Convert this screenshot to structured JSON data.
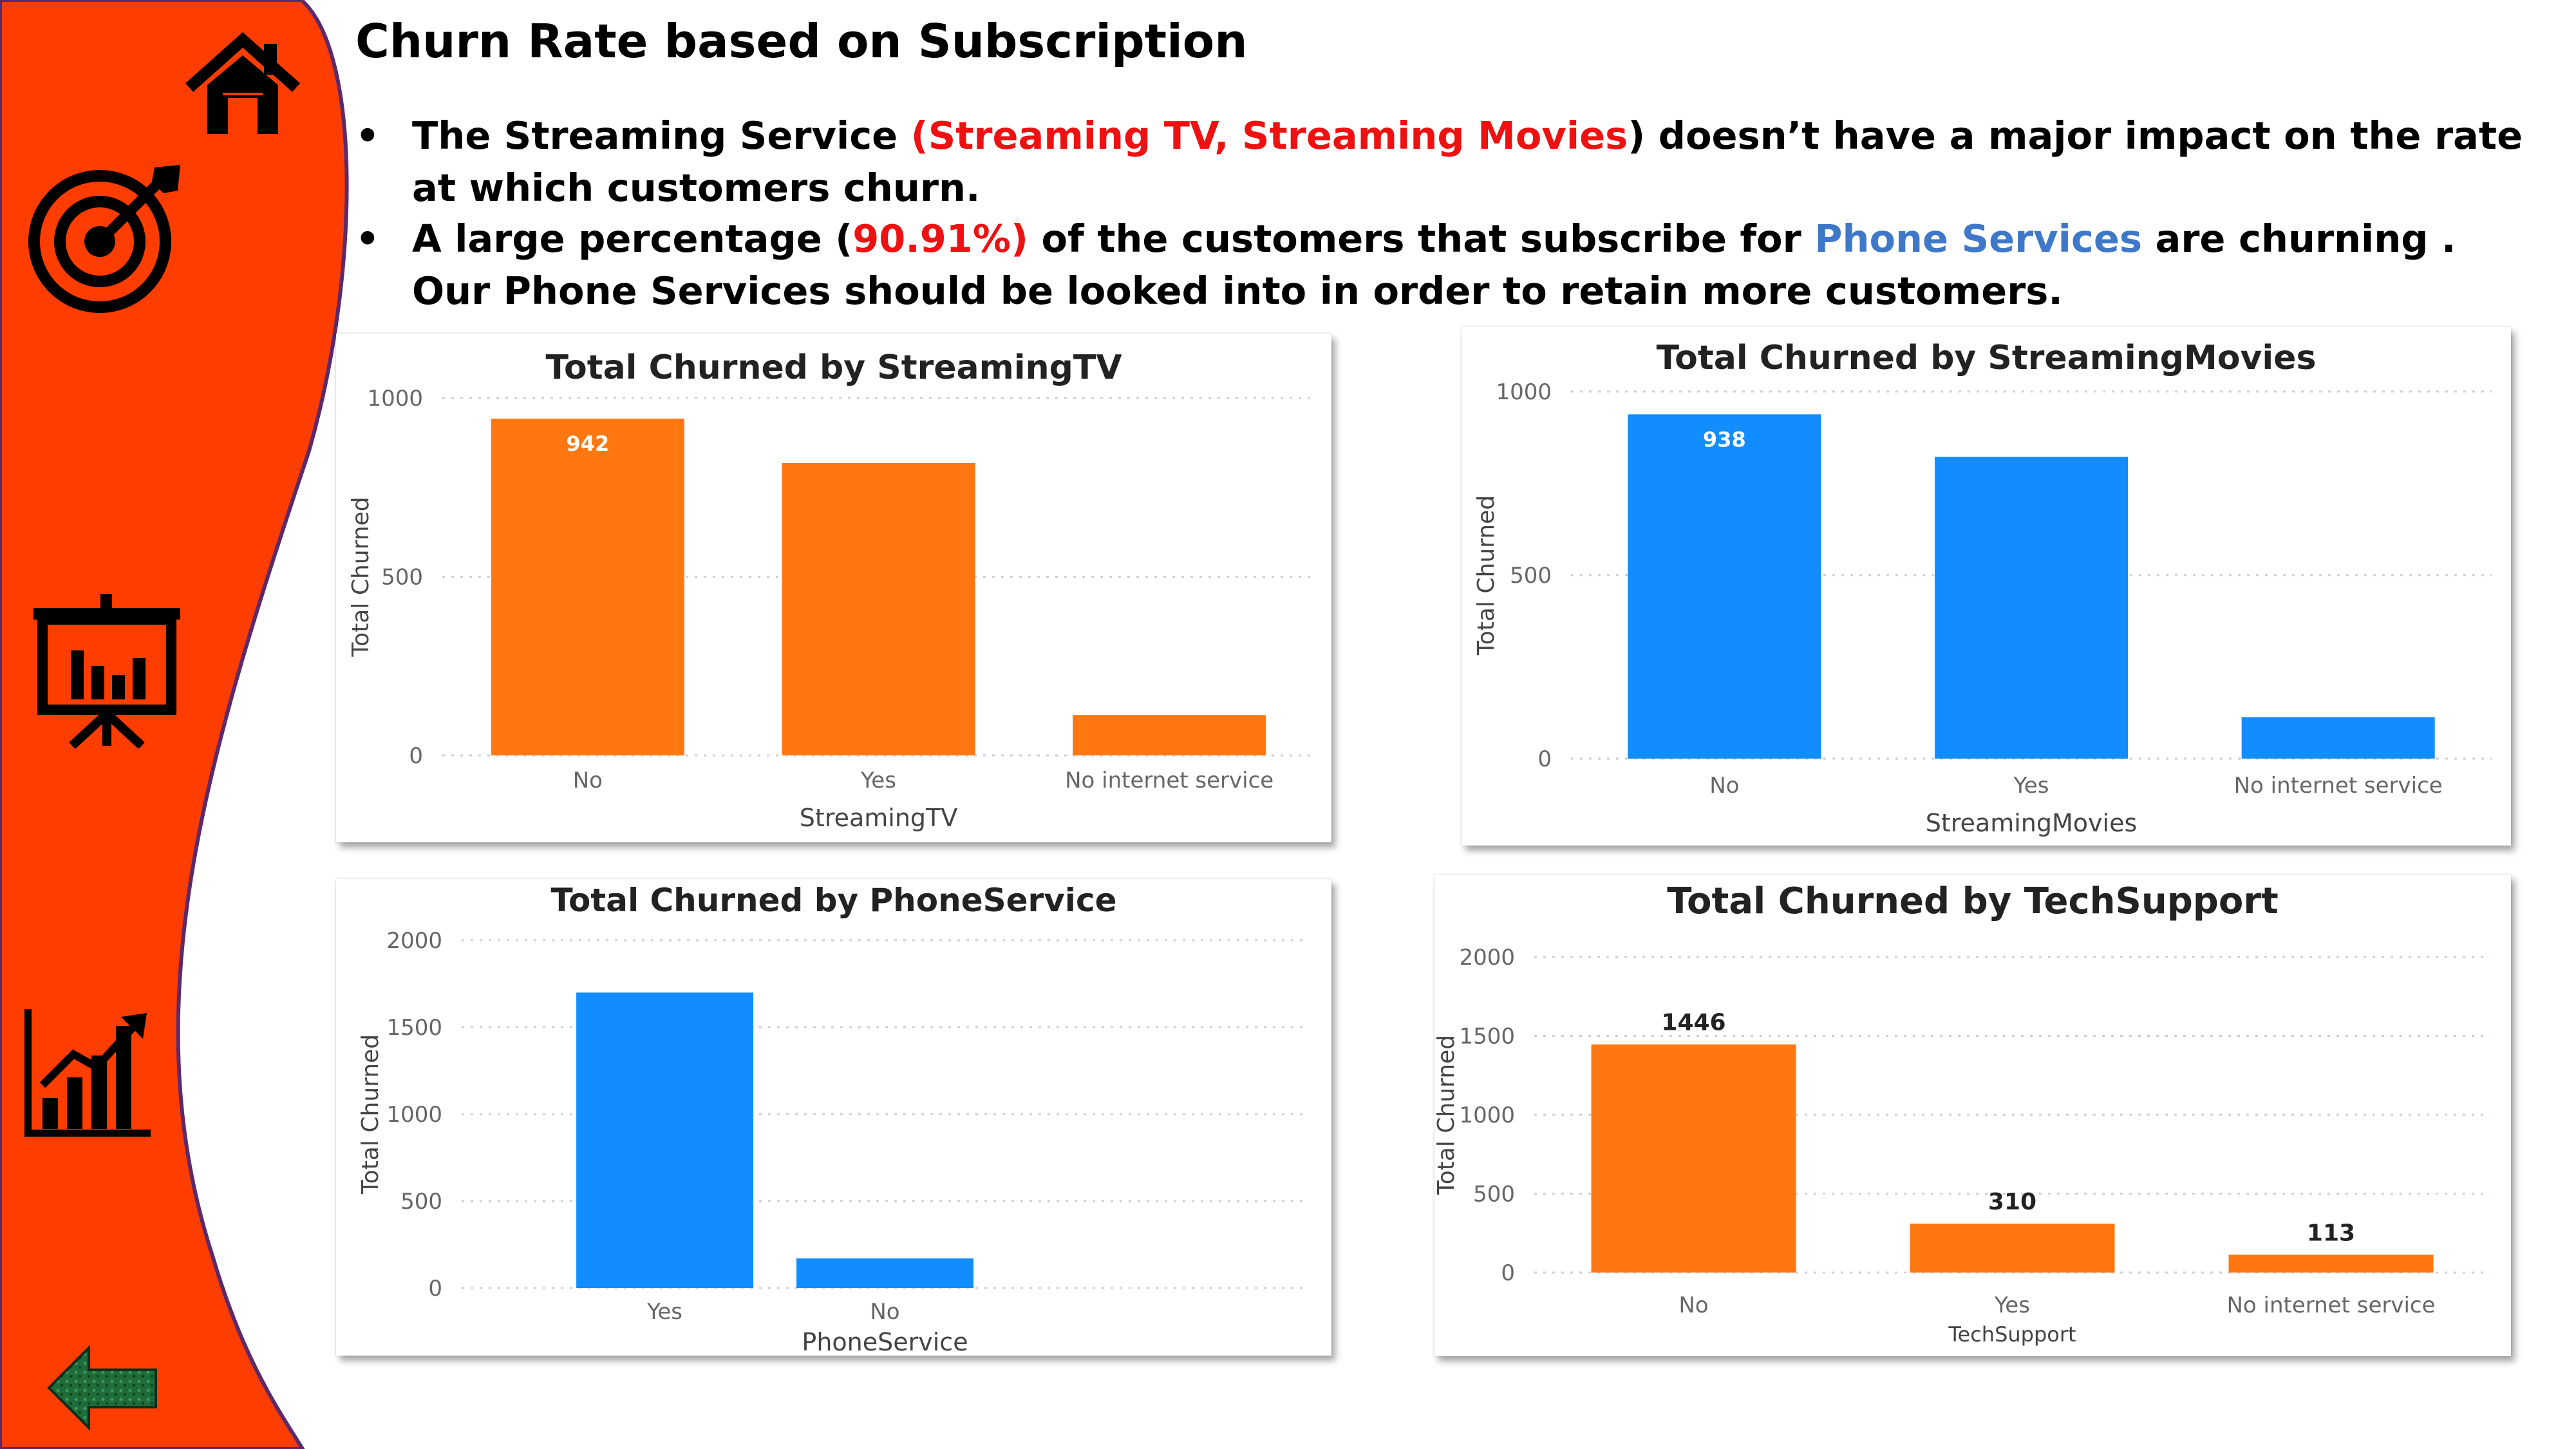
{
  "title": "Churn Rate based on Subscription",
  "bullets": [
    {
      "dot": "•",
      "parts": [
        {
          "text": "The Streaming Service ",
          "style": "plain"
        },
        {
          "text": "(Streaming TV, Streaming Movies",
          "style": "red"
        },
        {
          "text": ") doesn’t have a major impact on the rate at which customers churn.",
          "style": "plain"
        }
      ]
    },
    {
      "dot": "•",
      "parts": [
        {
          "text": "A large percentage (",
          "style": "plain"
        },
        {
          "text": "90.91%)",
          "style": "red"
        },
        {
          "text": " of the customers that subscribe for ",
          "style": "plain"
        },
        {
          "text": "Phone Services",
          "style": "blue"
        },
        {
          "text": " are churning . Our Phone Services should be looked into in order to retain more customers.",
          "style": "plain"
        }
      ]
    }
  ],
  "sidebar": {
    "background": "#ff3d00",
    "icons": [
      "home-icon",
      "target-icon",
      "presentation-chart-icon",
      "growth-chart-icon",
      "back-arrow-icon"
    ]
  },
  "colors": {
    "orange": "#ff7711",
    "blue": "#118dff",
    "red_text": "#ee1111",
    "blue_text": "#3f78c8"
  },
  "chart_data": [
    {
      "type": "bar",
      "title": "Total Churned by StreamingTV",
      "xlabel": "StreamingTV",
      "ylabel": "Total Churned",
      "categories": [
        "No",
        "Yes",
        "No internet service"
      ],
      "values": [
        942,
        818,
        113
      ],
      "data_labels": [
        "942",
        "",
        ""
      ],
      "ylim": [
        0,
        1000
      ],
      "yticks": [
        0,
        500,
        1000
      ],
      "color": "#ff7711",
      "grid": true
    },
    {
      "type": "bar",
      "title": "Total Churned by StreamingMovies",
      "xlabel": "StreamingMovies",
      "ylabel": "Total Churned",
      "categories": [
        "No",
        "Yes",
        "No internet service"
      ],
      "values": [
        938,
        822,
        113
      ],
      "data_labels": [
        "938",
        "",
        ""
      ],
      "ylim": [
        0,
        1000
      ],
      "yticks": [
        0,
        500,
        1000
      ],
      "color": "#118dff",
      "grid": true
    },
    {
      "type": "bar",
      "title": "Total Churned by PhoneService",
      "xlabel": "PhoneService",
      "ylabel": "Total Churned",
      "categories": [
        "Yes",
        "No"
      ],
      "values": [
        1699,
        170
      ],
      "data_labels": [
        "",
        ""
      ],
      "ylim": [
        0,
        2000
      ],
      "yticks": [
        0,
        500,
        1000,
        1500,
        2000
      ],
      "color": "#118dff",
      "grid": true
    },
    {
      "type": "bar",
      "title": "Total Churned by TechSupport",
      "xlabel": "TechSupport",
      "ylabel": "Total Churned",
      "categories": [
        "No",
        "Yes",
        "No internet service"
      ],
      "values": [
        1446,
        310,
        113
      ],
      "data_labels": [
        "1446",
        "310",
        "113"
      ],
      "ylim": [
        0,
        2000
      ],
      "yticks": [
        0,
        500,
        1000,
        1500,
        2000
      ],
      "color": "#ff7711",
      "grid": true
    }
  ]
}
